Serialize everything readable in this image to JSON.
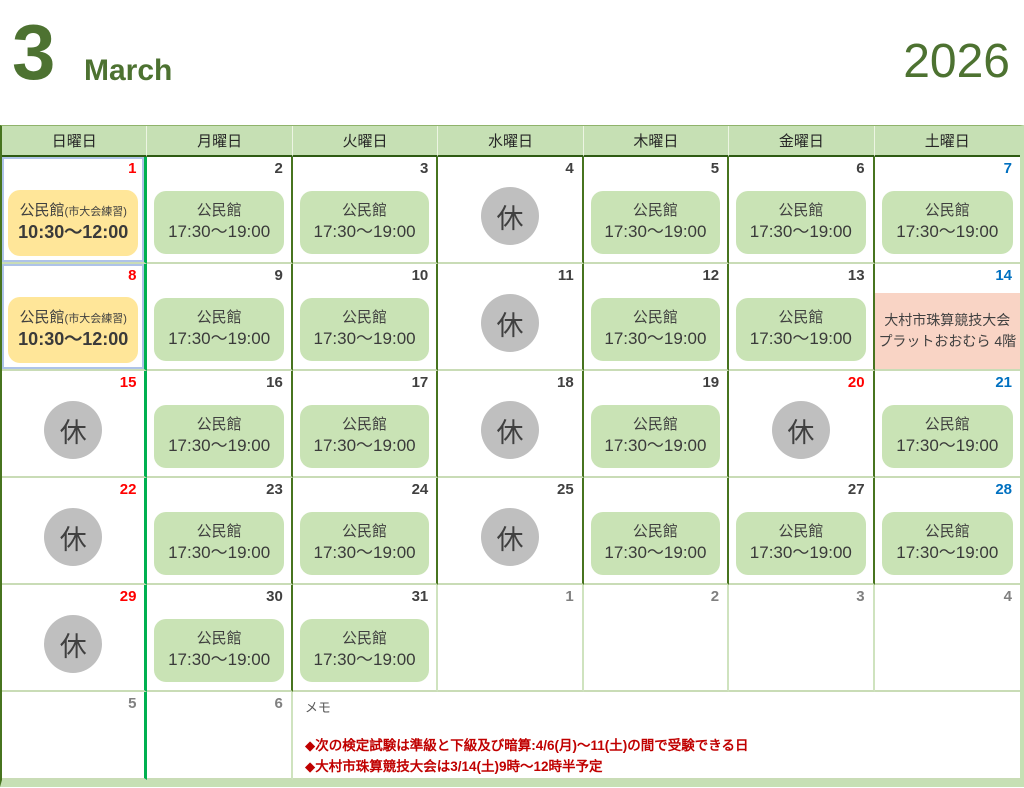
{
  "title": {
    "month_number": "3",
    "month_name": "March",
    "year": "2026"
  },
  "weekdays": [
    "日曜日",
    "月曜日",
    "火曜日",
    "水曜日",
    "木曜日",
    "金曜日",
    "土曜日"
  ],
  "symbols": {
    "rest": "休"
  },
  "colors": {
    "accent_green": "#4D7231",
    "grid_green": "#47741F",
    "bright_green": "#00B050",
    "light_green_header": "#C6E0B4",
    "event_green": "#C9E3B5",
    "event_yellow": "#FFE699",
    "event_pink": "#F9D4C5",
    "rest_gray": "#BFBFBF",
    "sunday_red": "#FF0000",
    "saturday_blue": "#0070C0",
    "next_month_gray": "#808080",
    "note_red": "#C00000"
  },
  "memo": {
    "label": "メモ",
    "notes": [
      "◆次の検定試験は準級と下級及び暗算:4/6(月)〜11(土)の間で受験できる日",
      "◆大村市珠算競技大会は3/14(土)9時〜12時半予定"
    ]
  },
  "weeks": [
    [
      {
        "day": "1",
        "tone": "red",
        "type": "yellow",
        "line1": "公民館",
        "line1_small": "(市大会練習)",
        "line2": "10:30〜12:00"
      },
      {
        "day": "2",
        "tone": "weekday",
        "type": "green",
        "line1": "公民館",
        "line2": "17:30〜19:00"
      },
      {
        "day": "3",
        "tone": "weekday",
        "type": "green",
        "line1": "公民館",
        "line2": "17:30〜19:00"
      },
      {
        "day": "4",
        "tone": "weekday",
        "type": "rest"
      },
      {
        "day": "5",
        "tone": "weekday",
        "type": "green",
        "line1": "公民館",
        "line2": "17:30〜19:00"
      },
      {
        "day": "6",
        "tone": "weekday",
        "type": "green",
        "line1": "公民館",
        "line2": "17:30〜19:00"
      },
      {
        "day": "7",
        "tone": "blue",
        "type": "green",
        "line1": "公民館",
        "line2": "17:30〜19:00"
      }
    ],
    [
      {
        "day": "8",
        "tone": "red",
        "type": "yellow",
        "line1": "公民館",
        "line1_small": "(市大会練習)",
        "line2": "10:30〜12:00"
      },
      {
        "day": "9",
        "tone": "weekday",
        "type": "green",
        "line1": "公民館",
        "line2": "17:30〜19:00"
      },
      {
        "day": "10",
        "tone": "weekday",
        "type": "green",
        "line1": "公民館",
        "line2": "17:30〜19:00"
      },
      {
        "day": "11",
        "tone": "weekday",
        "type": "rest"
      },
      {
        "day": "12",
        "tone": "weekday",
        "type": "green",
        "line1": "公民館",
        "line2": "17:30〜19:00"
      },
      {
        "day": "13",
        "tone": "weekday",
        "type": "green",
        "line1": "公民館",
        "line2": "17:30〜19:00"
      },
      {
        "day": "14",
        "tone": "blue",
        "type": "pink",
        "line1": "大村市珠算競技大会",
        "line2": "プラットおおむら 4階"
      }
    ],
    [
      {
        "day": "15",
        "tone": "red",
        "type": "rest"
      },
      {
        "day": "16",
        "tone": "weekday",
        "type": "green",
        "line1": "公民館",
        "line2": "17:30〜19:00"
      },
      {
        "day": "17",
        "tone": "weekday",
        "type": "green",
        "line1": "公民館",
        "line2": "17:30〜19:00"
      },
      {
        "day": "18",
        "tone": "weekday",
        "type": "rest"
      },
      {
        "day": "19",
        "tone": "weekday",
        "type": "green",
        "line1": "公民館",
        "line2": "17:30〜19:00"
      },
      {
        "day": "20",
        "tone": "red",
        "type": "rest"
      },
      {
        "day": "21",
        "tone": "blue",
        "type": "green",
        "line1": "公民館",
        "line2": "17:30〜19:00"
      }
    ],
    [
      {
        "day": "22",
        "tone": "red",
        "type": "rest"
      },
      {
        "day": "23",
        "tone": "weekday",
        "type": "green",
        "line1": "公民館",
        "line2": "17:30〜19:00"
      },
      {
        "day": "24",
        "tone": "weekday",
        "type": "green",
        "line1": "公民館",
        "line2": "17:30〜19:00"
      },
      {
        "day": "25",
        "tone": "weekday",
        "type": "rest"
      },
      {
        "day": "",
        "tone": "weekday",
        "type": "green",
        "line1": "公民館",
        "line2": "17:30〜19:00"
      },
      {
        "day": "27",
        "tone": "weekday",
        "type": "green",
        "line1": "公民館",
        "line2": "17:30〜19:00"
      },
      {
        "day": "28",
        "tone": "blue",
        "type": "green",
        "line1": "公民館",
        "line2": "17:30〜19:00"
      }
    ],
    [
      {
        "day": "29",
        "tone": "red",
        "type": "rest"
      },
      {
        "day": "30",
        "tone": "weekday",
        "type": "green",
        "line1": "公民館",
        "line2": "17:30〜19:00"
      },
      {
        "day": "31",
        "tone": "weekday",
        "type": "green",
        "line1": "公民館",
        "line2": "17:30〜19:00"
      },
      {
        "day": "1",
        "tone": "next",
        "type": "empty"
      },
      {
        "day": "2",
        "tone": "next",
        "type": "empty"
      },
      {
        "day": "3",
        "tone": "next",
        "type": "empty"
      },
      {
        "day": "4",
        "tone": "next",
        "type": "empty"
      }
    ],
    [
      {
        "day": "5",
        "tone": "next",
        "type": "empty"
      },
      {
        "day": "6",
        "tone": "next",
        "type": "empty"
      },
      {
        "type": "memo",
        "span": 5
      }
    ]
  ]
}
